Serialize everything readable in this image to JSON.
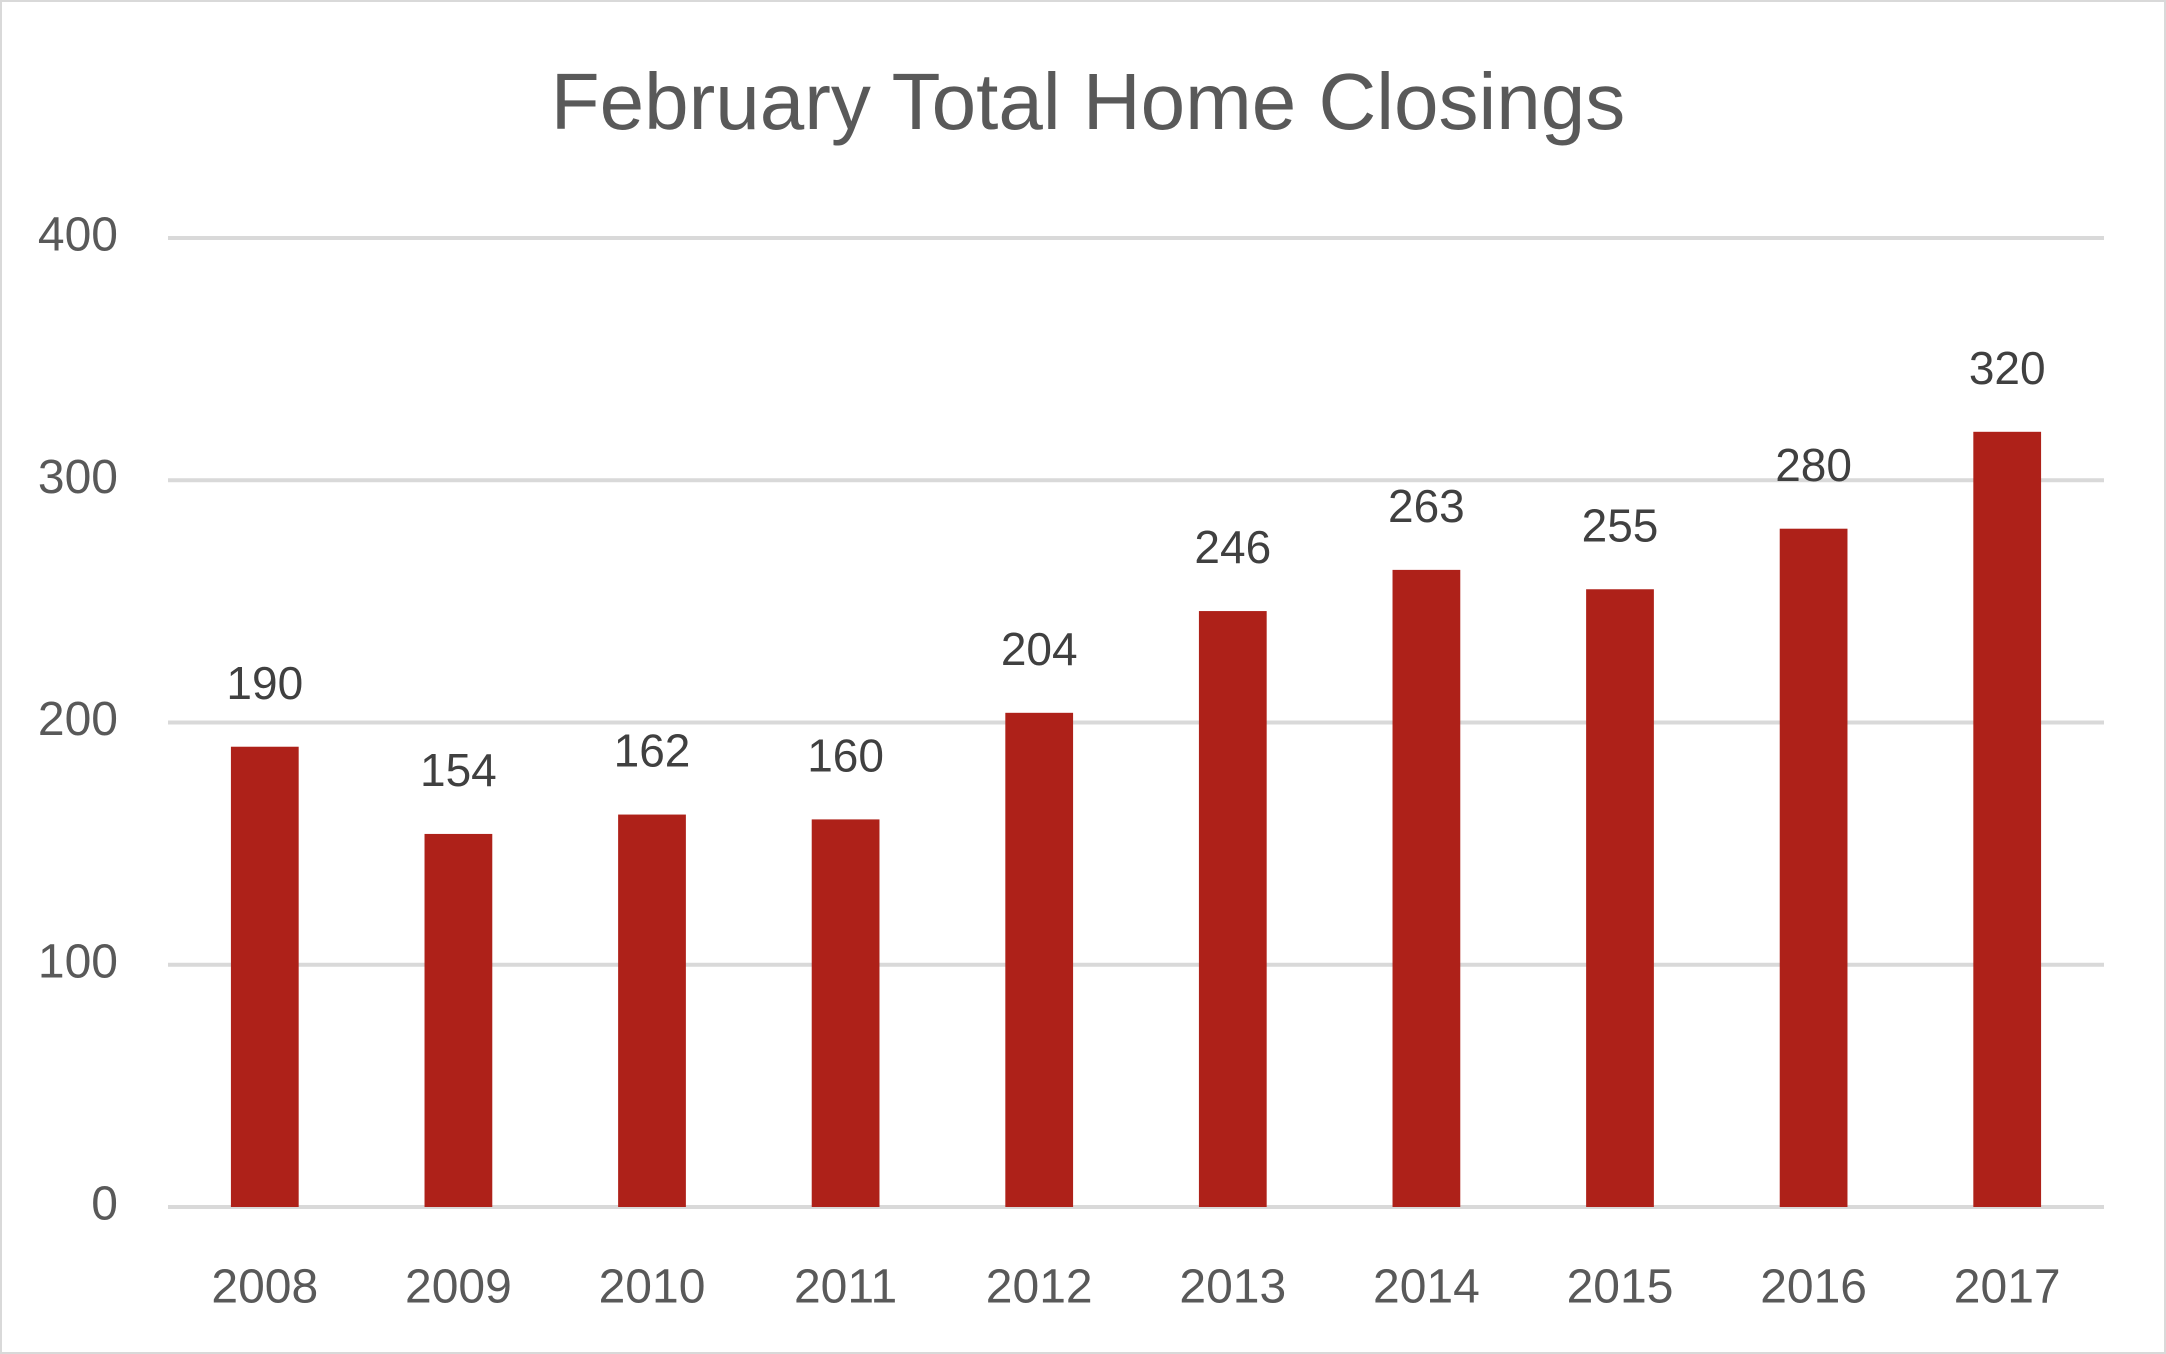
{
  "chart_data": {
    "type": "bar",
    "title": "February Total Home Closings",
    "categories": [
      "2008",
      "2009",
      "2010",
      "2011",
      "2012",
      "2013",
      "2014",
      "2015",
      "2016",
      "2017"
    ],
    "values": [
      190,
      154,
      162,
      160,
      204,
      246,
      263,
      255,
      280,
      320
    ],
    "color": "#ae2119",
    "ylim": [
      0,
      400
    ],
    "yticks": [
      0,
      100,
      200,
      300,
      400
    ],
    "grid": true,
    "data_labels": true
  }
}
